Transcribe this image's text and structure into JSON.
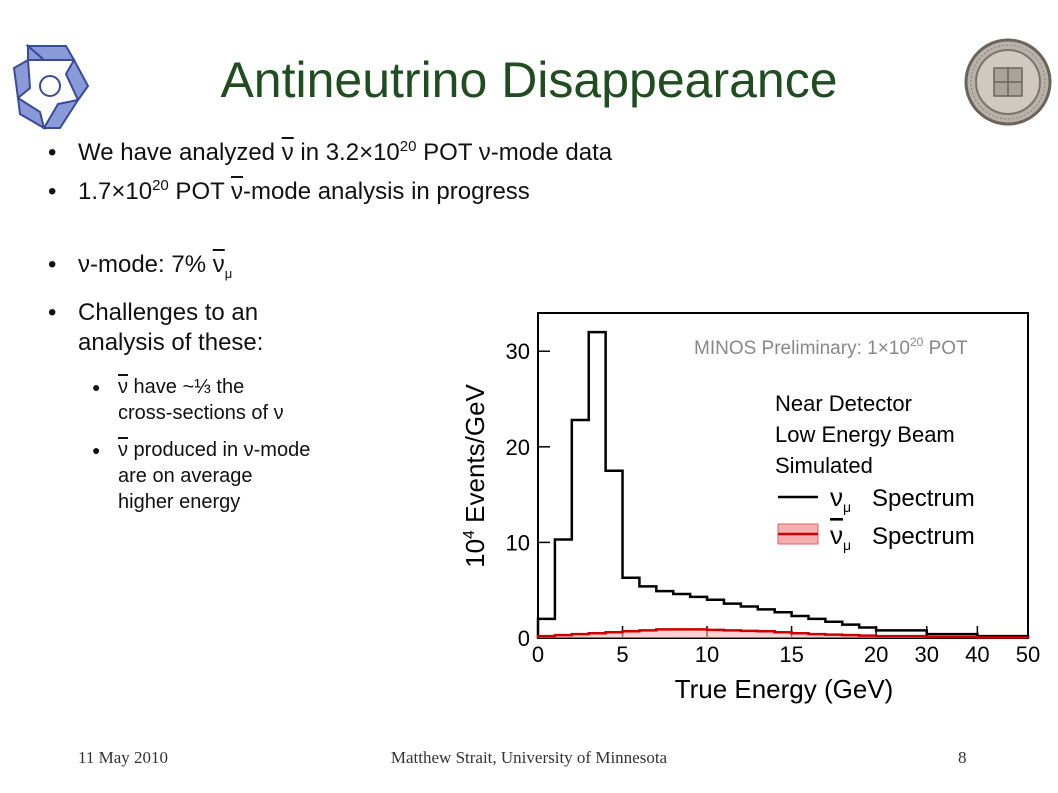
{
  "slide": {
    "title": "Antineutrino Disappearance",
    "bullets": {
      "b1_pre": "We have analyzed ",
      "b1_nubar": "ν",
      "b1_mid": " in 3.2×10",
      "b1_exp": "20",
      "b1_post": " POT ν-mode data",
      "b2_pre": "1.7×10",
      "b2_exp": "20",
      "b2_mid": " POT ",
      "b2_nubar": "ν",
      "b2_post": "-mode analysis in progress",
      "b3_pre": "ν-mode: 7% ",
      "b3_nubar": "ν",
      "b3_sub": "μ",
      "b4_line1": "Challenges to an",
      "b4_line2": "analysis of these:"
    },
    "subbullets": {
      "s1_nubar": "ν",
      "s1_line1_rest": " have ~⅓ the",
      "s1_line2": "cross-sections of ν",
      "s2_nubar": "ν",
      "s2_line1_rest": " produced in ν-mode",
      "s2_line2": "are on average",
      "s2_line3": "higher energy"
    },
    "footer": {
      "date": "11 May 2010",
      "author": "Matthew Strait, University of Minnesota",
      "page": "8"
    },
    "logos": {
      "left": "minos-logo-icon",
      "right": "university-seal-icon"
    }
  },
  "chart_data": {
    "type": "line",
    "xlabel": "True Energy (GeV)",
    "ylabel_base": "10",
    "ylabel_exp": "4",
    "ylabel_rest": " Events/GeV",
    "annotation": "MINOS Preliminary: 1×10",
    "annotation_exp": "20",
    "annotation_post": " POT",
    "legend_lines": [
      "Near Detector",
      "Low Energy Beam",
      "Simulated"
    ],
    "legend_series": [
      {
        "symbol": "ν",
        "sub": "μ",
        "label": "Spectrum",
        "color": "#000000",
        "bar": false
      },
      {
        "symbol": "ν",
        "sub": "μ",
        "label": "Spectrum",
        "color": "#cc0000",
        "bar": true
      }
    ],
    "x_ticks": [
      "0",
      "5",
      "10",
      "15",
      "20",
      "30",
      "40",
      "50"
    ],
    "y_ticks": [
      "0",
      "10",
      "20",
      "30"
    ],
    "ylim": [
      0,
      34
    ],
    "legend_placement": "top-right",
    "series": [
      {
        "name": "νμ Spectrum",
        "color": "#000000",
        "bin_edges": [
          0,
          1,
          2,
          3,
          4,
          5,
          6,
          7,
          8,
          9,
          10,
          11,
          12,
          13,
          14,
          15,
          16,
          17,
          18,
          19,
          20,
          30,
          40,
          50
        ],
        "values": [
          2.0,
          10.3,
          22.8,
          32.0,
          17.5,
          6.3,
          5.4,
          4.9,
          4.6,
          4.3,
          4.0,
          3.6,
          3.3,
          3.0,
          2.7,
          2.3,
          2.0,
          1.7,
          1.4,
          1.1,
          0.8,
          0.4,
          0.2
        ]
      },
      {
        "name": "ν̄μ Spectrum",
        "color": "#cc0000",
        "bin_edges": [
          0,
          1,
          2,
          3,
          4,
          5,
          6,
          7,
          8,
          9,
          10,
          11,
          12,
          13,
          14,
          15,
          16,
          17,
          18,
          19,
          20,
          30,
          40,
          50
        ],
        "values": [
          0.2,
          0.3,
          0.4,
          0.5,
          0.6,
          0.7,
          0.8,
          0.9,
          0.9,
          0.9,
          0.85,
          0.8,
          0.75,
          0.7,
          0.6,
          0.5,
          0.4,
          0.35,
          0.3,
          0.25,
          0.2,
          0.1,
          0.05
        ]
      }
    ]
  }
}
